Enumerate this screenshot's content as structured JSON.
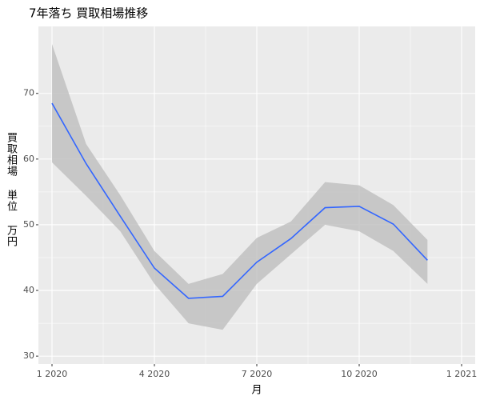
{
  "chart_data": {
    "type": "line",
    "title": "7年落ち 買取相場推移",
    "x_label": "月",
    "y_label": "買取相場 単位 万円",
    "x": [
      "2020-01",
      "2020-02",
      "2020-03",
      "2020-04",
      "2020-05",
      "2020-06",
      "2020-07",
      "2020-08",
      "2020-09",
      "2020-10",
      "2020-11",
      "2020-12"
    ],
    "series": [
      {
        "color": "#3366ff",
        "band_color": "#bebebe",
        "values": [
          68.5,
          59.3,
          51.3,
          43.4,
          38.8,
          39.1,
          44.3,
          47.9,
          52.6,
          52.8,
          50.1,
          44.6
        ],
        "lower": [
          59.5,
          54.4,
          49.0,
          41.0,
          35.0,
          34.0,
          41.0,
          45.5,
          50.0,
          49.0,
          46.0,
          41.0
        ],
        "upper": [
          77.5,
          62.3,
          54.5,
          46.0,
          41.0,
          42.5,
          48.0,
          50.5,
          56.5,
          56.0,
          53.0,
          47.7
        ]
      }
    ],
    "xlim": [
      "2020-01",
      "2021-01"
    ],
    "xticks": [
      {
        "value": "2020-01",
        "label": "1 2020"
      },
      {
        "value": "2020-04",
        "label": "4 2020"
      },
      {
        "value": "2020-07",
        "label": "7 2020"
      },
      {
        "value": "2020-10",
        "label": "10 2020"
      },
      {
        "value": "2021-01",
        "label": "1 2021"
      }
    ],
    "ylim": [
      28.8,
      80.2
    ],
    "yticks": [
      30,
      40,
      50,
      60,
      70
    ],
    "grid": true
  }
}
